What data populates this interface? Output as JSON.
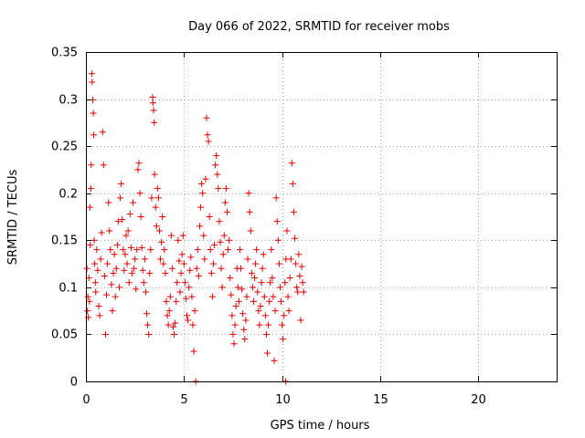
{
  "chart_data": {
    "type": "scatter",
    "title": "Day 066 of 2022, SRMTID for receiver mobs",
    "xlabel": "GPS time / hours",
    "ylabel": "SRMTID / TECUs",
    "xlim": [
      0,
      24
    ],
    "ylim": [
      0,
      0.35
    ],
    "xticks": [
      0,
      5,
      10,
      15,
      20
    ],
    "xtick_labels": [
      "0",
      "5",
      "10",
      "15",
      "20"
    ],
    "yticks": [
      0,
      0.05,
      0.1,
      0.15,
      0.2,
      0.25,
      0.3,
      0.35
    ],
    "ytick_labels": [
      "0",
      "0.05",
      "0.1",
      "0.15",
      "0.2",
      "0.25",
      "0.3",
      "0.35"
    ],
    "grid": true,
    "marker": "plus",
    "marker_color": "#e00000",
    "series": [
      {
        "name": "SRMTID",
        "points": [
          [
            0.05,
            0.12
          ],
          [
            0.08,
            0.075
          ],
          [
            0.1,
            0.09
          ],
          [
            0.12,
            0.068
          ],
          [
            0.15,
            0.11
          ],
          [
            0.18,
            0.085
          ],
          [
            0.2,
            0.185
          ],
          [
            0.22,
            0.145
          ],
          [
            0.25,
            0.205
          ],
          [
            0.27,
            0.23
          ],
          [
            0.3,
            0.327
          ],
          [
            0.32,
            0.318
          ],
          [
            0.35,
            0.299
          ],
          [
            0.38,
            0.285
          ],
          [
            0.4,
            0.262
          ],
          [
            0.42,
            0.15
          ],
          [
            0.45,
            0.125
          ],
          [
            0.48,
            0.105
          ],
          [
            0.5,
            0.095
          ],
          [
            0.55,
            0.14
          ],
          [
            0.6,
            0.118
          ],
          [
            0.65,
            0.08
          ],
          [
            0.7,
            0.07
          ],
          [
            0.75,
            0.13
          ],
          [
            0.8,
            0.158
          ],
          [
            0.85,
            0.265
          ],
          [
            0.9,
            0.23
          ],
          [
            0.95,
            0.112
          ],
          [
            1.0,
            0.05
          ],
          [
            1.05,
            0.092
          ],
          [
            1.1,
            0.125
          ],
          [
            1.15,
            0.19
          ],
          [
            1.2,
            0.16
          ],
          [
            1.25,
            0.14
          ],
          [
            1.3,
            0.103
          ],
          [
            1.35,
            0.075
          ],
          [
            1.4,
            0.115
          ],
          [
            1.45,
            0.135
          ],
          [
            1.5,
            0.09
          ],
          [
            1.55,
            0.12
          ],
          [
            1.6,
            0.145
          ],
          [
            1.65,
            0.17
          ],
          [
            1.7,
            0.1
          ],
          [
            1.75,
            0.195
          ],
          [
            1.8,
            0.21
          ],
          [
            1.85,
            0.172
          ],
          [
            1.9,
            0.14
          ],
          [
            1.95,
            0.118
          ],
          [
            2.0,
            0.135
          ],
          [
            2.05,
            0.155
          ],
          [
            2.1,
            0.125
          ],
          [
            2.15,
            0.16
          ],
          [
            2.2,
            0.105
          ],
          [
            2.25,
            0.178
          ],
          [
            2.3,
            0.142
          ],
          [
            2.35,
            0.115
          ],
          [
            2.4,
            0.19
          ],
          [
            2.45,
            0.12
          ],
          [
            2.5,
            0.13
          ],
          [
            2.55,
            0.098
          ],
          [
            2.6,
            0.14
          ],
          [
            2.65,
            0.225
          ],
          [
            2.7,
            0.232
          ],
          [
            2.75,
            0.2
          ],
          [
            2.8,
            0.175
          ],
          [
            2.85,
            0.142
          ],
          [
            2.9,
            0.118
          ],
          [
            2.95,
            0.105
          ],
          [
            3.0,
            0.13
          ],
          [
            3.05,
            0.095
          ],
          [
            3.1,
            0.072
          ],
          [
            3.15,
            0.06
          ],
          [
            3.2,
            0.05
          ],
          [
            3.25,
            0.115
          ],
          [
            3.3,
            0.14
          ],
          [
            3.35,
            0.195
          ],
          [
            3.4,
            0.302
          ],
          [
            3.42,
            0.296
          ],
          [
            3.45,
            0.288
          ],
          [
            3.48,
            0.275
          ],
          [
            3.5,
            0.22
          ],
          [
            3.55,
            0.185
          ],
          [
            3.6,
            0.165
          ],
          [
            3.65,
            0.205
          ],
          [
            3.7,
            0.195
          ],
          [
            3.75,
            0.16
          ],
          [
            3.8,
            0.13
          ],
          [
            3.85,
            0.148
          ],
          [
            3.9,
            0.175
          ],
          [
            3.95,
            0.125
          ],
          [
            4.0,
            0.14
          ],
          [
            4.05,
            0.115
          ],
          [
            4.1,
            0.085
          ],
          [
            4.15,
            0.07
          ],
          [
            4.2,
            0.06
          ],
          [
            4.25,
            0.075
          ],
          [
            4.3,
            0.09
          ],
          [
            4.35,
            0.155
          ],
          [
            4.4,
            0.12
          ],
          [
            4.45,
            0.058
          ],
          [
            4.5,
            0.05
          ],
          [
            4.55,
            0.062
          ],
          [
            4.6,
            0.085
          ],
          [
            4.65,
            0.105
          ],
          [
            4.7,
            0.15
          ],
          [
            4.75,
            0.128
          ],
          [
            4.8,
            0.095
          ],
          [
            4.85,
            0.115
          ],
          [
            4.9,
            0.135
          ],
          [
            4.95,
            0.155
          ],
          [
            5.0,
            0.125
          ],
          [
            5.05,
            0.105
          ],
          [
            5.1,
            0.088
          ],
          [
            5.15,
            0.07
          ],
          [
            5.2,
            0.065
          ],
          [
            5.25,
            0.1
          ],
          [
            5.3,
            0.118
          ],
          [
            5.35,
            0.132
          ],
          [
            5.4,
            0.09
          ],
          [
            5.45,
            0.06
          ],
          [
            5.5,
            0.032
          ],
          [
            5.55,
            0.075
          ],
          [
            5.6,
            0.0
          ],
          [
            5.65,
            0.12
          ],
          [
            5.7,
            0.14
          ],
          [
            5.75,
            0.112
          ],
          [
            5.8,
            0.165
          ],
          [
            5.85,
            0.185
          ],
          [
            5.9,
            0.21
          ],
          [
            5.95,
            0.2
          ],
          [
            6.0,
            0.155
          ],
          [
            6.05,
            0.13
          ],
          [
            6.1,
            0.215
          ],
          [
            6.15,
            0.28
          ],
          [
            6.2,
            0.262
          ],
          [
            6.25,
            0.255
          ],
          [
            6.3,
            0.175
          ],
          [
            6.35,
            0.14
          ],
          [
            6.4,
            0.115
          ],
          [
            6.45,
            0.09
          ],
          [
            6.5,
            0.125
          ],
          [
            6.55,
            0.145
          ],
          [
            6.6,
            0.23
          ],
          [
            6.65,
            0.24
          ],
          [
            6.7,
            0.22
          ],
          [
            6.75,
            0.205
          ],
          [
            6.8,
            0.17
          ],
          [
            6.85,
            0.148
          ],
          [
            6.9,
            0.12
          ],
          [
            6.95,
            0.1
          ],
          [
            7.0,
            0.135
          ],
          [
            7.05,
            0.155
          ],
          [
            7.1,
            0.19
          ],
          [
            7.15,
            0.205
          ],
          [
            7.2,
            0.18
          ],
          [
            7.25,
            0.14
          ],
          [
            7.3,
            0.15
          ],
          [
            7.35,
            0.11
          ],
          [
            7.4,
            0.092
          ],
          [
            7.45,
            0.07
          ],
          [
            7.5,
            0.05
          ],
          [
            7.55,
            0.04
          ],
          [
            7.6,
            0.06
          ],
          [
            7.65,
            0.08
          ],
          [
            7.7,
            0.12
          ],
          [
            7.75,
            0.1
          ],
          [
            7.8,
            0.085
          ],
          [
            7.85,
            0.14
          ],
          [
            7.9,
            0.12
          ],
          [
            7.95,
            0.098
          ],
          [
            8.0,
            0.072
          ],
          [
            8.05,
            0.055
          ],
          [
            8.1,
            0.045
          ],
          [
            8.15,
            0.065
          ],
          [
            8.2,
            0.09
          ],
          [
            8.25,
            0.13
          ],
          [
            8.3,
            0.2
          ],
          [
            8.35,
            0.18
          ],
          [
            8.4,
            0.16
          ],
          [
            8.45,
            0.115
          ],
          [
            8.5,
            0.1
          ],
          [
            8.55,
            0.085
          ],
          [
            8.6,
            0.11
          ],
          [
            8.65,
            0.125
          ],
          [
            8.7,
            0.14
          ],
          [
            8.75,
            0.095
          ],
          [
            8.8,
            0.075
          ],
          [
            8.85,
            0.06
          ],
          [
            8.9,
            0.08
          ],
          [
            8.95,
            0.105
          ],
          [
            9.0,
            0.12
          ],
          [
            9.05,
            0.135
          ],
          [
            9.1,
            0.09
          ],
          [
            9.15,
            0.07
          ],
          [
            9.2,
            0.05
          ],
          [
            9.25,
            0.03
          ],
          [
            9.3,
            0.06
          ],
          [
            9.35,
            0.085
          ],
          [
            9.4,
            0.105
          ],
          [
            9.45,
            0.14
          ],
          [
            9.5,
            0.11
          ],
          [
            9.55,
            0.09
          ],
          [
            9.6,
            0.022
          ],
          [
            9.65,
            0.075
          ],
          [
            9.7,
            0.195
          ],
          [
            9.75,
            0.17
          ],
          [
            9.8,
            0.15
          ],
          [
            9.85,
            0.125
          ],
          [
            9.9,
            0.1
          ],
          [
            9.95,
            0.085
          ],
          [
            10.0,
            0.06
          ],
          [
            10.05,
            0.045
          ],
          [
            10.1,
            0.07
          ],
          [
            10.15,
            0.105
          ],
          [
            10.18,
            0.0
          ],
          [
            10.2,
            0.13
          ],
          [
            10.25,
            0.16
          ],
          [
            10.3,
            0.09
          ],
          [
            10.35,
            0.075
          ],
          [
            10.4,
            0.11
          ],
          [
            10.45,
            0.13
          ],
          [
            10.5,
            0.232
          ],
          [
            10.55,
            0.21
          ],
          [
            10.6,
            0.18
          ],
          [
            10.65,
            0.152
          ],
          [
            10.7,
            0.125
          ],
          [
            10.75,
            0.1
          ],
          [
            10.8,
            0.095
          ],
          [
            10.85,
            0.135
          ],
          [
            10.9,
            0.112
          ],
          [
            10.95,
            0.065
          ],
          [
            11.0,
            0.122
          ],
          [
            11.05,
            0.105
          ],
          [
            11.1,
            0.095
          ]
        ]
      }
    ]
  }
}
